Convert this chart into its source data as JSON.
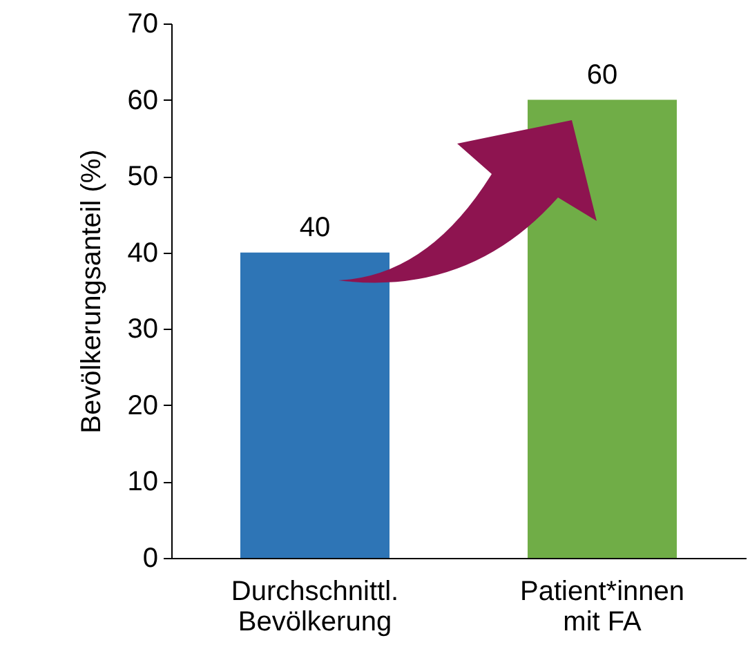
{
  "chart_data": {
    "type": "bar",
    "ylabel": "Bevölkerungsanteil (%)",
    "categories": [
      "Durchschnittl.\nBevölkerung",
      "Patient*innen\nmit FA"
    ],
    "values": [
      40,
      60
    ],
    "colors": [
      "#2e75b6",
      "#70ad47"
    ],
    "ylim": [
      0,
      70
    ],
    "yticks": [
      0,
      10,
      20,
      30,
      40,
      50,
      60,
      70
    ],
    "grid": false,
    "data_labels": true
  }
}
